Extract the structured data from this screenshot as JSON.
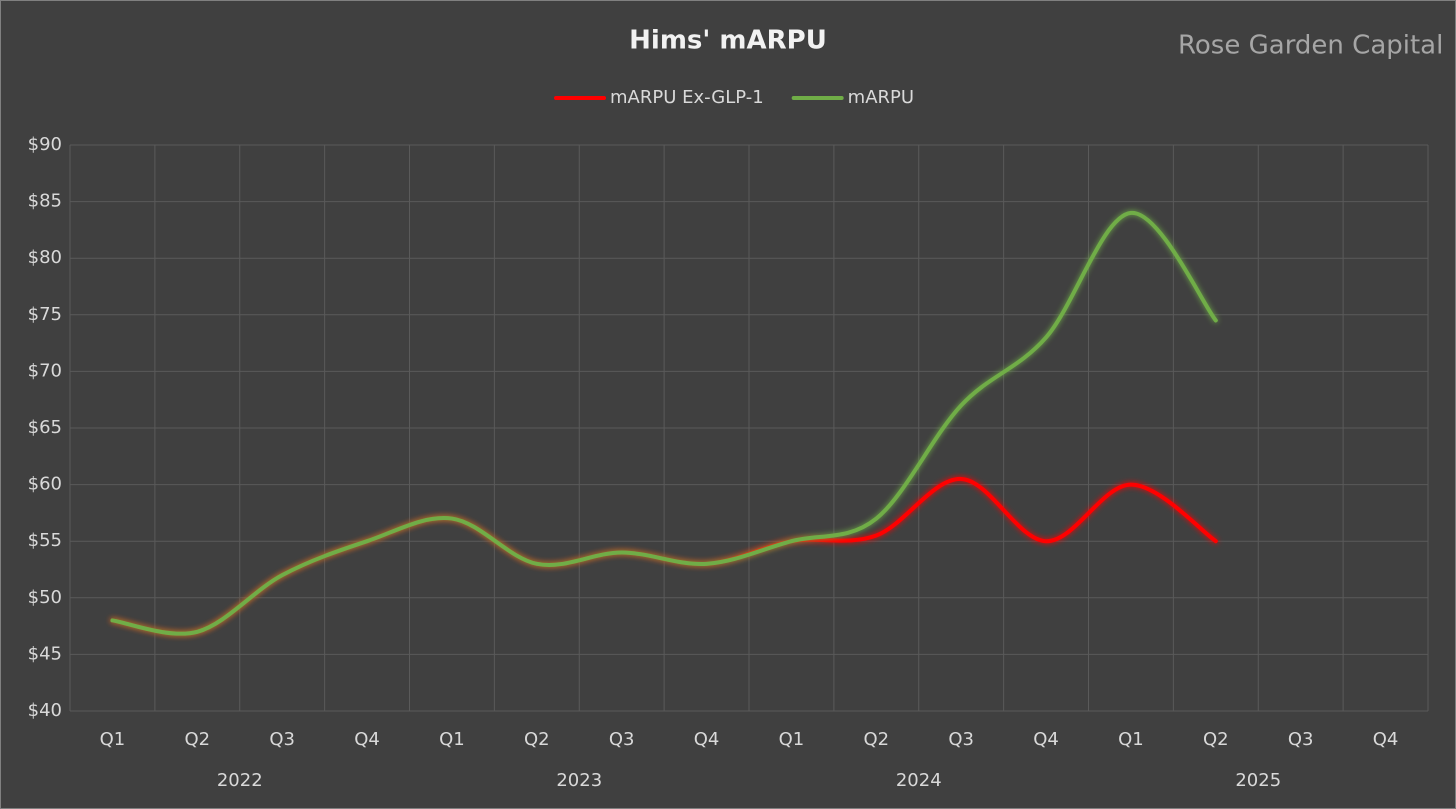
{
  "chart_data": {
    "type": "line",
    "title": "Hims' mARPU",
    "watermark": "Rose Garden Capital",
    "categories": [
      "Q1",
      "Q2",
      "Q3",
      "Q4",
      "Q1",
      "Q2",
      "Q3",
      "Q4",
      "Q1",
      "Q2",
      "Q3",
      "Q4",
      "Q1",
      "Q2",
      "Q3",
      "Q4"
    ],
    "category_groups": [
      "2022",
      "2023",
      "2024",
      "2025"
    ],
    "series": [
      {
        "name": "mARPU Ex-GLP-1",
        "color": "#ff0000",
        "values": [
          48,
          47,
          52,
          55,
          57,
          53,
          54,
          53,
          55,
          55.5,
          60.5,
          55,
          60,
          55,
          null,
          null
        ]
      },
      {
        "name": "mARPU",
        "color": "#70ad47",
        "values": [
          48,
          47,
          52,
          55,
          57,
          53,
          54,
          53,
          55,
          57,
          67,
          73,
          84,
          74.5,
          null,
          null
        ]
      }
    ],
    "ylim": [
      40,
      90
    ],
    "yticks": [
      {
        "value": 40,
        "label": "$40"
      },
      {
        "value": 45,
        "label": "$45"
      },
      {
        "value": 50,
        "label": "$50"
      },
      {
        "value": 55,
        "label": "$55"
      },
      {
        "value": 60,
        "label": "$60"
      },
      {
        "value": 65,
        "label": "$65"
      },
      {
        "value": 70,
        "label": "$70"
      },
      {
        "value": 75,
        "label": "$75"
      },
      {
        "value": 80,
        "label": "$80"
      },
      {
        "value": 85,
        "label": "$85"
      },
      {
        "value": 90,
        "label": "$90"
      }
    ],
    "grid": true,
    "legend": "top"
  }
}
